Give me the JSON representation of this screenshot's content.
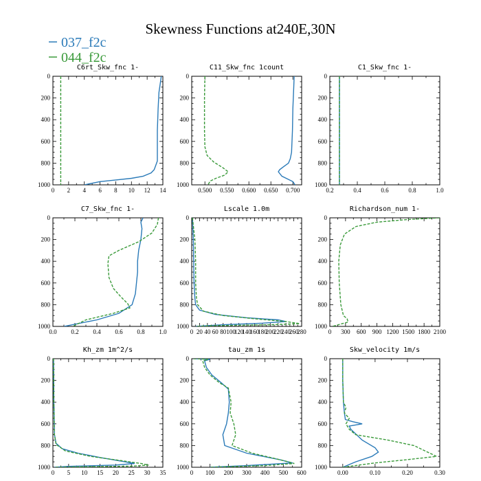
{
  "title": "Skewness Functions at240E,30N",
  "legend": [
    {
      "name": "037_f2c",
      "color": "#2a7ab8"
    },
    {
      "name": "044_f2c",
      "color": "#3a9a3a"
    }
  ],
  "chart_data": [
    {
      "type": "line",
      "title": "C6rt_Skw_fnc  1-",
      "xlim": [
        0,
        14
      ],
      "ylim": [
        1000,
        0
      ],
      "xticks": [
        0,
        2,
        4,
        6,
        8,
        10,
        12,
        14
      ],
      "yticks": [
        0,
        200,
        400,
        600,
        800,
        1000
      ],
      "series": [
        {
          "name": "037_f2c",
          "color": "#2a7ab8",
          "dash": "none",
          "x": [
            13.8,
            13.7,
            13.5,
            13.4,
            13.3,
            13.3,
            13.3,
            13.1,
            12.9,
            12.5,
            11.5,
            10.0,
            8.0,
            6.0,
            4.0
          ],
          "y": [
            0,
            50,
            150,
            300,
            500,
            700,
            780,
            820,
            860,
            890,
            920,
            940,
            955,
            970,
            1000
          ]
        },
        {
          "name": "044_f2c",
          "color": "#3a9a3a",
          "dash": "4,2",
          "x": [
            1.0,
            1.0
          ],
          "y": [
            0,
            1000
          ]
        }
      ]
    },
    {
      "type": "line",
      "title": "C11_Skw_fnc  1count",
      "xlim": [
        0.47,
        0.72
      ],
      "ylim": [
        1000,
        0
      ],
      "xticks": [
        0.5,
        0.55,
        0.6,
        0.65,
        0.7
      ],
      "xticklabels": [
        "0.500",
        "0.550",
        "0.600",
        "0.650",
        "0.700"
      ],
      "yticks": [
        0,
        200,
        400,
        600,
        800,
        1000
      ],
      "series": [
        {
          "name": "037_f2c",
          "color": "#2a7ab8",
          "dash": "none",
          "x": [
            0.703,
            0.702,
            0.7,
            0.699,
            0.697,
            0.694,
            0.69,
            0.68,
            0.67,
            0.667,
            0.675,
            0.69,
            0.7,
            0.705
          ],
          "y": [
            0,
            100,
            300,
            500,
            700,
            760,
            800,
            830,
            860,
            880,
            920,
            950,
            970,
            1000
          ]
        },
        {
          "name": "044_f2c",
          "color": "#3a9a3a",
          "dash": "4,2",
          "x": [
            0.5,
            0.499,
            0.499,
            0.5,
            0.505,
            0.52,
            0.54,
            0.553,
            0.545,
            0.525,
            0.512,
            0.507
          ],
          "y": [
            0,
            200,
            500,
            650,
            730,
            790,
            840,
            880,
            910,
            940,
            965,
            1000
          ]
        }
      ]
    },
    {
      "type": "line",
      "title": "C1_Skw_fnc  1-",
      "xlim": [
        0.2,
        1.0
      ],
      "ylim": [
        1000,
        0
      ],
      "xticks": [
        0.2,
        0.4,
        0.6,
        0.8,
        1.0
      ],
      "xticklabels": [
        "0.2",
        "0.4",
        "0.6",
        "0.8",
        "1.0"
      ],
      "yticks": [
        0,
        200,
        400,
        600,
        800,
        1000
      ],
      "series": [
        {
          "name": "037_f2c",
          "color": "#2a7ab8",
          "dash": "none",
          "x": [
            0.27,
            0.27
          ],
          "y": [
            0,
            1000
          ]
        },
        {
          "name": "044_f2c",
          "color": "#3a9a3a",
          "dash": "4,2",
          "x": [
            0.27,
            0.27
          ],
          "y": [
            0,
            1000
          ]
        }
      ]
    },
    {
      "type": "line",
      "title": "C7_Skw_fnc  1-",
      "xlim": [
        0.0,
        1.0
      ],
      "ylim": [
        1000,
        0
      ],
      "xticks": [
        0.0,
        0.2,
        0.4,
        0.6,
        0.8,
        1.0
      ],
      "xticklabels": [
        "0.0",
        "0.2",
        "0.4",
        "0.6",
        "0.8",
        "1.0"
      ],
      "yticks": [
        0,
        200,
        400,
        600,
        800,
        1000
      ],
      "series": [
        {
          "name": "037_f2c",
          "color": "#2a7ab8",
          "dash": "none",
          "x": [
            0.82,
            0.8,
            0.81,
            0.8,
            0.78,
            0.77,
            0.77,
            0.76,
            0.75,
            0.72,
            0.6,
            0.4,
            0.1
          ],
          "y": [
            0,
            40,
            100,
            200,
            300,
            400,
            500,
            600,
            700,
            800,
            880,
            940,
            1000
          ]
        },
        {
          "name": "044_f2c",
          "color": "#3a9a3a",
          "dash": "4,2",
          "x": [
            0.96,
            0.95,
            0.9,
            0.78,
            0.6,
            0.51,
            0.5,
            0.51,
            0.55,
            0.62,
            0.68,
            0.7,
            0.55,
            0.3,
            0.18
          ],
          "y": [
            0,
            60,
            140,
            220,
            300,
            350,
            420,
            550,
            650,
            730,
            790,
            830,
            880,
            940,
            1000
          ]
        }
      ]
    },
    {
      "type": "line",
      "title": "Lscale  1.0m",
      "xlim": [
        0,
        280
      ],
      "ylim": [
        1000,
        0
      ],
      "xticks": [
        0,
        20,
        40,
        60,
        80,
        100,
        120,
        140,
        160,
        180,
        200,
        220,
        240,
        260,
        280
      ],
      "yticks": [
        0,
        200,
        400,
        600,
        800,
        1000
      ],
      "series": [
        {
          "name": "037_f2c",
          "color": "#2a7ab8",
          "dash": "none",
          "x": [
            2,
            4,
            5,
            6,
            8,
            10,
            20,
            60,
            140,
            220,
            240,
            180,
            80,
            10
          ],
          "y": [
            0,
            200,
            400,
            600,
            740,
            800,
            850,
            890,
            920,
            940,
            955,
            970,
            985,
            1000
          ]
        },
        {
          "name": "044_f2c",
          "color": "#3a9a3a",
          "dash": "4,2",
          "x": [
            2,
            8,
            10,
            10,
            12,
            15,
            30,
            80,
            160,
            240,
            275,
            200,
            60,
            10
          ],
          "y": [
            0,
            200,
            400,
            600,
            740,
            800,
            860,
            900,
            930,
            955,
            975,
            985,
            993,
            1000
          ]
        }
      ]
    },
    {
      "type": "line",
      "title": "Richardson_num  1-",
      "xlim": [
        0,
        2100
      ],
      "ylim": [
        1000,
        0
      ],
      "xticks": [
        0,
        300,
        600,
        900,
        1200,
        1500,
        1800,
        2100
      ],
      "yticks": [
        0,
        200,
        400,
        600,
        800,
        1000
      ],
      "series": [
        {
          "name": "044_f2c",
          "color": "#3a9a3a",
          "dash": "4,2",
          "x": [
            2100,
            1500,
            900,
            500,
            280,
            200,
            170,
            180,
            210,
            260,
            330,
            350,
            200,
            50
          ],
          "y": [
            0,
            15,
            40,
            80,
            150,
            250,
            400,
            600,
            800,
            900,
            930,
            960,
            980,
            1000
          ]
        }
      ]
    },
    {
      "type": "line",
      "title": "Kh_zm  1m^2/s",
      "xlim": [
        0,
        35
      ],
      "ylim": [
        1000,
        0
      ],
      "xticks": [
        0,
        5,
        10,
        15,
        20,
        25,
        30,
        35
      ],
      "yticks": [
        0,
        200,
        400,
        600,
        800,
        1000
      ],
      "series": [
        {
          "name": "037_f2c",
          "color": "#2a7ab8",
          "dash": "none",
          "x": [
            0.2,
            0.3,
            0.5,
            1.0,
            3.0,
            8.0,
            15.0,
            22.0,
            26.0,
            20.0,
            5.0,
            0.5
          ],
          "y": [
            0,
            400,
            700,
            780,
            830,
            870,
            910,
            945,
            965,
            980,
            992,
            1000
          ]
        },
        {
          "name": "044_f2c",
          "color": "#3a9a3a",
          "dash": "4,2",
          "x": [
            0.2,
            0.3,
            0.5,
            1.0,
            4.0,
            12.0,
            22.0,
            28.0,
            30.5,
            25.0,
            8.0,
            0.5
          ],
          "y": [
            0,
            400,
            700,
            790,
            850,
            900,
            940,
            965,
            980,
            990,
            996,
            1000
          ]
        }
      ]
    },
    {
      "type": "line",
      "title": "tau_zm  1s",
      "xlim": [
        0,
        600
      ],
      "ylim": [
        1000,
        0
      ],
      "xticks": [
        0,
        100,
        200,
        300,
        400,
        500,
        600
      ],
      "yticks": [
        0,
        200,
        400,
        600,
        800,
        1000
      ],
      "series": [
        {
          "name": "037_f2c",
          "color": "#2a7ab8",
          "dash": "none",
          "x": [
            10,
            100,
            70,
            80,
            110,
            160,
            200,
            205,
            200,
            190,
            170,
            180,
            300,
            480,
            550,
            300,
            100
          ],
          "y": [
            0,
            5,
            20,
            80,
            150,
            220,
            280,
            400,
            500,
            600,
            700,
            800,
            870,
            930,
            960,
            985,
            1000
          ]
        },
        {
          "name": "044_f2c",
          "color": "#3a9a3a",
          "dash": "4,2",
          "x": [
            10,
            90,
            60,
            70,
            100,
            150,
            200,
            215,
            210,
            230,
            240,
            220,
            330,
            480,
            560,
            400,
            100
          ],
          "y": [
            0,
            5,
            20,
            80,
            150,
            220,
            270,
            400,
            500,
            600,
            700,
            800,
            870,
            930,
            965,
            985,
            1000
          ]
        }
      ]
    },
    {
      "type": "line",
      "title": "Skw_velocity  1m/s",
      "xlim": [
        -0.04,
        0.3
      ],
      "ylim": [
        1000,
        0
      ],
      "xticks": [
        0.0,
        0.1,
        0.2,
        0.3
      ],
      "xticklabels": [
        "0.00",
        "0.10",
        "0.20",
        "0.30"
      ],
      "yticks": [
        0,
        200,
        400,
        600,
        800,
        1000
      ],
      "series": [
        {
          "name": "037_f2c",
          "color": "#2a7ab8",
          "dash": "none",
          "x": [
            0.0,
            0.0,
            0.002,
            0.005,
            0.008,
            0.03,
            0.06,
            0.02,
            0.025,
            0.06,
            0.1,
            0.11,
            0.09,
            0.04,
            0.0
          ],
          "y": [
            0,
            200,
            400,
            500,
            560,
            580,
            600,
            620,
            650,
            750,
            820,
            860,
            900,
            950,
            1000
          ]
        },
        {
          "name": "044_f2c",
          "color": "#3a9a3a",
          "dash": "4,2",
          "x": [
            0.0,
            0.0,
            0.002,
            0.01,
            0.005,
            0.02,
            0.01,
            0.02,
            0.04,
            0.14,
            0.22,
            0.29,
            0.2,
            0.1,
            0.0
          ],
          "y": [
            0,
            200,
            400,
            450,
            500,
            550,
            600,
            650,
            700,
            750,
            800,
            900,
            930,
            960,
            1000
          ]
        }
      ]
    }
  ]
}
